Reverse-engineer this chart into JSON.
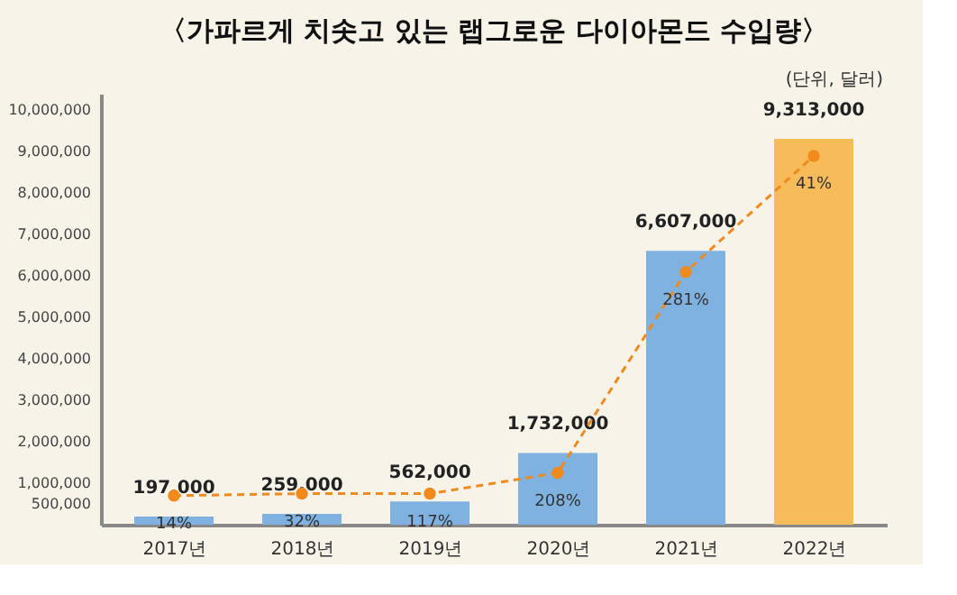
{
  "chart_data": {
    "type": "bar",
    "title": "〈가파르게 치솟고 있는 랩그로운 다이아몬드 수입량〉",
    "annotations": [
      "(단위, 달러)",
      {
        "text": "14%",
        "x": "2017년",
        "y": 700000
      },
      {
        "text": "32%",
        "x": "2018년",
        "y": 750000
      },
      {
        "text": "117%",
        "x": "2019년",
        "y": 750000
      },
      {
        "text": "208%",
        "x": "2020년",
        "y": 1250000
      },
      {
        "text": "281%",
        "x": "2021년",
        "y": 6100000
      },
      {
        "text": "41%",
        "x": "2022년",
        "y": 8900000
      }
    ],
    "categories": [
      "2017년",
      "2018년",
      "2019년",
      "2020년",
      "2021년",
      "2022년"
    ],
    "series": [
      {
        "colors": [
          "#7fb2e0",
          "#7fb2e0",
          "#7fb2e0",
          "#7fb2e0",
          "#7fb2e0",
          "#f8bb5a"
        ],
        "values": [
          197000,
          259000,
          562000,
          1732000,
          6607000,
          9313000
        ],
        "value_labels": [
          "197,000",
          "259,000",
          "562,000",
          "1,732,000",
          "6,607,000",
          "9,313,000"
        ]
      },
      {
        "type": "line",
        "color": "#f08a1c",
        "line_style": "dashed",
        "marker": "circle",
        "values": [
          700000,
          750000,
          750000,
          1250000,
          6100000,
          8900000
        ]
      }
    ],
    "ylim": [
      0,
      10400000
    ],
    "yticks": [
      {
        "value": 500000,
        "label": "500,000"
      },
      {
        "value": 1000000,
        "label": "1,000,000"
      },
      {
        "value": 2000000,
        "label": "2,000,000"
      },
      {
        "value": 3000000,
        "label": "3,000,000"
      },
      {
        "value": 4000000,
        "label": "4,000,000"
      },
      {
        "value": 5000000,
        "label": "5,000,000"
      },
      {
        "value": 6000000,
        "label": "6,000,000"
      },
      {
        "value": 7000000,
        "label": "7,000,000"
      },
      {
        "value": 8000000,
        "label": "8,000,000"
      },
      {
        "value": 9000000,
        "label": "9,000,000"
      },
      {
        "value": 10000000,
        "label": "10,000,000"
      }
    ],
    "grid": false
  }
}
